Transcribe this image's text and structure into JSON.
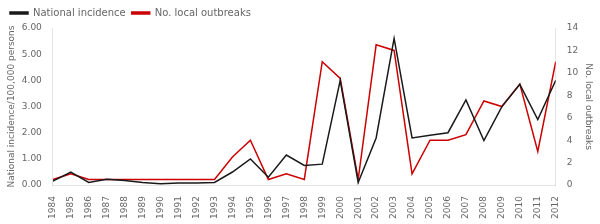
{
  "chart_data": {
    "type": "line",
    "x": [
      1984,
      1985,
      1986,
      1987,
      1988,
      1989,
      1990,
      1991,
      1992,
      1993,
      1994,
      1995,
      1996,
      1997,
      1998,
      1999,
      2000,
      2001,
      2002,
      2003,
      2004,
      2005,
      2006,
      2007,
      2008,
      2009,
      2010,
      2011,
      2012
    ],
    "series": [
      {
        "name": "National incidence",
        "color": "#1a1a1a",
        "values": [
          0.15,
          0.5,
          0.1,
          0.22,
          0.18,
          0.1,
          0.05,
          0.08,
          0.08,
          0.1,
          0.5,
          1.0,
          0.3,
          1.15,
          0.75,
          0.8,
          4.0,
          0.1,
          1.8,
          5.6,
          1.8,
          1.9,
          2.0,
          3.25,
          1.7,
          3.0,
          3.85,
          2.5,
          4.0
        ]
      },
      {
        "name": "No. local outbreaks",
        "color": "#cc0000",
        "axis": "y2",
        "values": [
          0.5,
          1.0,
          0.5,
          0.5,
          0.5,
          0.5,
          0.5,
          0.5,
          0.5,
          0.5,
          2.5,
          4.0,
          0.5,
          1.0,
          0.5,
          11.0,
          9.5,
          0.5,
          12.5,
          12.0,
          1.0,
          4.0,
          4.0,
          4.5,
          7.5,
          7.0,
          9.0,
          3.0,
          11.0
        ]
      }
    ],
    "xlim": [
      1984,
      2012
    ],
    "xticks": [
      1984,
      1985,
      1986,
      1987,
      1988,
      1989,
      1990,
      1991,
      1992,
      1993,
      1994,
      1995,
      1996,
      1997,
      1998,
      1999,
      2000,
      2001,
      2002,
      2003,
      2004,
      2005,
      2006,
      2007,
      2008,
      2009,
      2010,
      2011,
      2012
    ],
    "ylim": [
      0.0,
      6.0
    ],
    "yticks": [
      {
        "value": 0,
        "label": "0.00"
      },
      {
        "value": 1,
        "label": "1.00"
      },
      {
        "value": 2,
        "label": "2.00"
      },
      {
        "value": 3,
        "label": "3.00"
      },
      {
        "value": 4,
        "label": "4.00"
      },
      {
        "value": 5,
        "label": "5.00"
      },
      {
        "value": 6,
        "label": "6.00"
      }
    ],
    "y2lim": [
      0,
      14
    ],
    "y2ticks": [
      0,
      2,
      4,
      6,
      8,
      10,
      12,
      14
    ],
    "ylabel": "National incidence/100,000 persons",
    "y2label": "No. local outbreaks",
    "legend": "upper left",
    "grid": false
  }
}
